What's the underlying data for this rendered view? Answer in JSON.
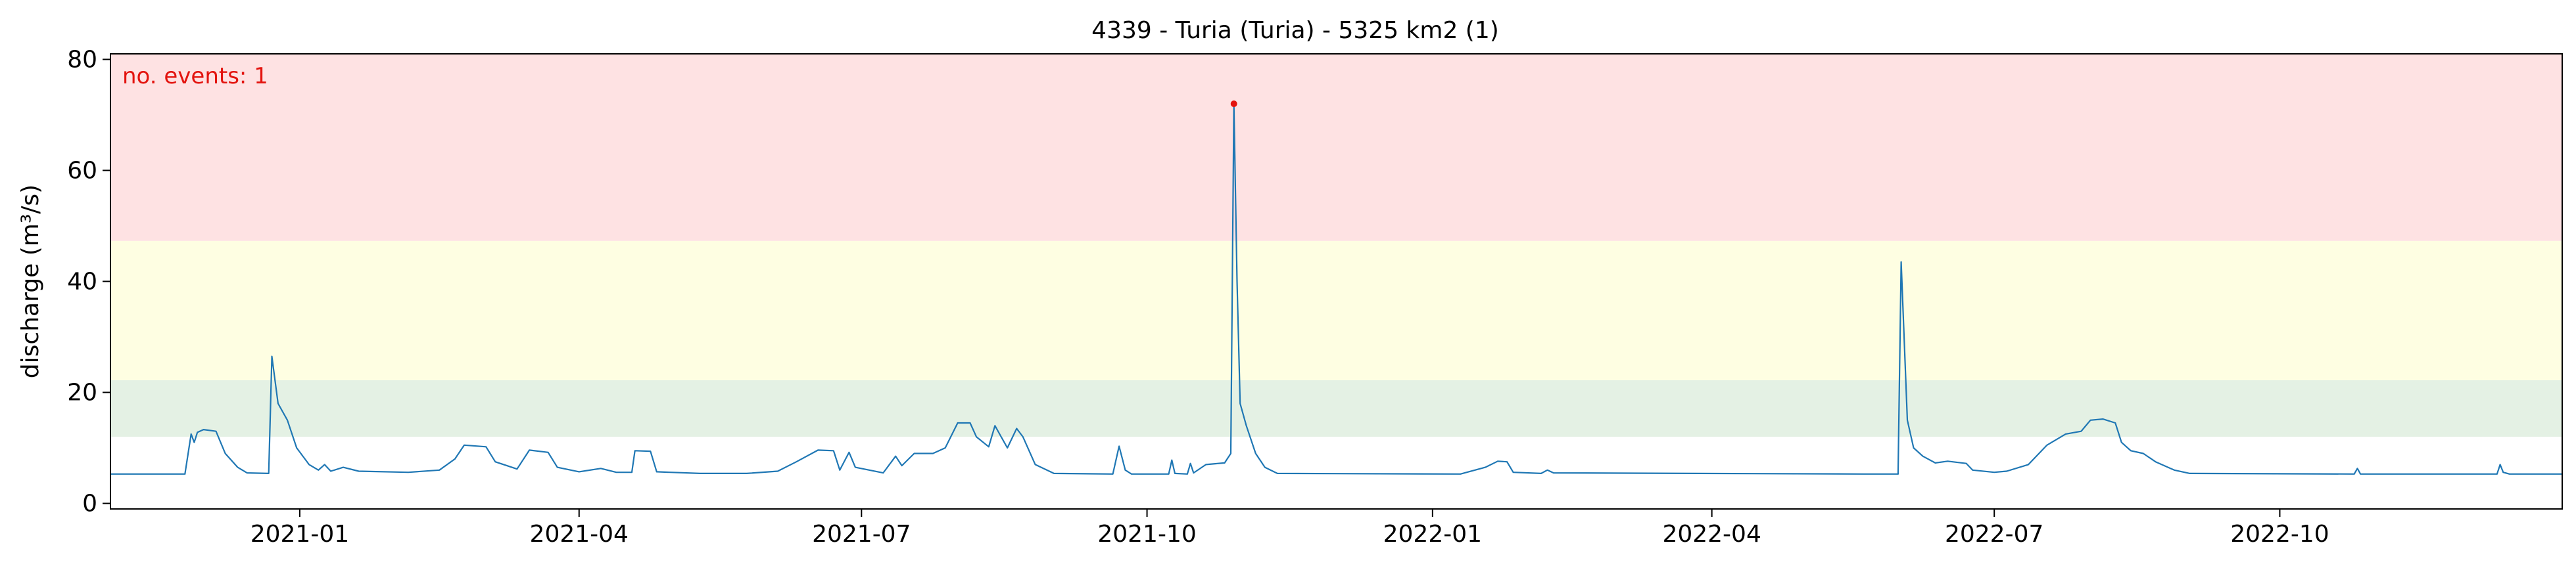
{
  "chart_data": {
    "type": "line",
    "title": "4339 - Turia (Turia) - 5325 km2 (1)",
    "xlabel": "",
    "ylabel": "discharge (m³/s)",
    "xlim": [
      "2020-11-01",
      "2022-12-31"
    ],
    "ylim": [
      -1,
      81
    ],
    "y_ticks": [
      0,
      20,
      40,
      60,
      80
    ],
    "x_ticks": [
      "2021-01-01",
      "2021-04-01",
      "2021-07-01",
      "2021-10-01",
      "2022-01-01",
      "2022-04-01",
      "2022-07-01",
      "2022-10-01"
    ],
    "x_tick_labels": [
      "2021-01",
      "2021-04",
      "2021-07",
      "2021-10",
      "2022-01",
      "2022-04",
      "2022-07",
      "2022-10"
    ],
    "grid": false,
    "threshold_bands": [
      {
        "y0": 12.0,
        "y1": 22.2,
        "color": "#e4f1e4"
      },
      {
        "y0": 22.2,
        "y1": 47.3,
        "color": "#fefee2"
      },
      {
        "y0": 47.3,
        "y1": 81,
        "color": "#fee2e3"
      }
    ],
    "series": [
      {
        "color": "#1f77b4",
        "points": [
          [
            "2020-11-01",
            5.3
          ],
          [
            "2020-11-25",
            5.3
          ],
          [
            "2020-11-27",
            12.5
          ],
          [
            "2020-11-28",
            11.0
          ],
          [
            "2020-11-29",
            12.8
          ],
          [
            "2020-12-01",
            13.3
          ],
          [
            "2020-12-05",
            13.0
          ],
          [
            "2020-12-08",
            9.0
          ],
          [
            "2020-12-12",
            6.5
          ],
          [
            "2020-12-15",
            5.5
          ],
          [
            "2020-12-22",
            5.4
          ],
          [
            "2020-12-23",
            26.5
          ],
          [
            "2020-12-25",
            18.0
          ],
          [
            "2020-12-28",
            15.0
          ],
          [
            "2020-12-31",
            10.0
          ],
          [
            "2021-01-04",
            7.0
          ],
          [
            "2021-01-07",
            6.0
          ],
          [
            "2021-01-09",
            7.0
          ],
          [
            "2021-01-11",
            5.8
          ],
          [
            "2021-01-15",
            6.5
          ],
          [
            "2021-01-20",
            5.8
          ],
          [
            "2021-02-05",
            5.6
          ],
          [
            "2021-02-15",
            6.0
          ],
          [
            "2021-02-20",
            8.0
          ],
          [
            "2021-02-23",
            10.5
          ],
          [
            "2021-03-02",
            10.2
          ],
          [
            "2021-03-05",
            7.5
          ],
          [
            "2021-03-12",
            6.2
          ],
          [
            "2021-03-16",
            9.6
          ],
          [
            "2021-03-22",
            9.2
          ],
          [
            "2021-03-25",
            6.5
          ],
          [
            "2021-04-01",
            5.7
          ],
          [
            "2021-04-08",
            6.3
          ],
          [
            "2021-04-13",
            5.6
          ],
          [
            "2021-04-18",
            5.6
          ],
          [
            "2021-04-19",
            9.5
          ],
          [
            "2021-04-24",
            9.4
          ],
          [
            "2021-04-26",
            5.7
          ],
          [
            "2021-05-10",
            5.4
          ],
          [
            "2021-05-25",
            5.4
          ],
          [
            "2021-06-04",
            5.8
          ],
          [
            "2021-06-10",
            7.5
          ],
          [
            "2021-06-17",
            9.6
          ],
          [
            "2021-06-22",
            9.5
          ],
          [
            "2021-06-24",
            6.0
          ],
          [
            "2021-06-27",
            9.2
          ],
          [
            "2021-06-29",
            6.5
          ],
          [
            "2021-07-08",
            5.5
          ],
          [
            "2021-07-12",
            8.5
          ],
          [
            "2021-07-14",
            6.8
          ],
          [
            "2021-07-18",
            9.0
          ],
          [
            "2021-07-24",
            9.0
          ],
          [
            "2021-07-28",
            10.0
          ],
          [
            "2021-08-01",
            14.5
          ],
          [
            "2021-08-05",
            14.5
          ],
          [
            "2021-08-07",
            12.0
          ],
          [
            "2021-08-11",
            10.2
          ],
          [
            "2021-08-13",
            14.0
          ],
          [
            "2021-08-15",
            12.0
          ],
          [
            "2021-08-17",
            10.0
          ],
          [
            "2021-08-20",
            13.5
          ],
          [
            "2021-08-22",
            12.0
          ],
          [
            "2021-08-26",
            7.0
          ],
          [
            "2021-09-01",
            5.4
          ],
          [
            "2021-09-20",
            5.3
          ],
          [
            "2021-09-22",
            10.3
          ],
          [
            "2021-09-24",
            6.0
          ],
          [
            "2021-09-26",
            5.3
          ],
          [
            "2021-10-08",
            5.3
          ],
          [
            "2021-10-09",
            7.8
          ],
          [
            "2021-10-10",
            5.4
          ],
          [
            "2021-10-14",
            5.3
          ],
          [
            "2021-10-15",
            7.2
          ],
          [
            "2021-10-16",
            5.5
          ],
          [
            "2021-10-20",
            7.0
          ],
          [
            "2021-10-26",
            7.3
          ],
          [
            "2021-10-28",
            9.0
          ],
          [
            "2021-10-29",
            72.0
          ],
          [
            "2021-10-30",
            40.0
          ],
          [
            "2021-10-31",
            18.0
          ],
          [
            "2021-11-02",
            14.0
          ],
          [
            "2021-11-05",
            9.0
          ],
          [
            "2021-11-08",
            6.5
          ],
          [
            "2021-11-12",
            5.4
          ],
          [
            "2022-01-10",
            5.3
          ],
          [
            "2022-01-18",
            6.5
          ],
          [
            "2022-01-22",
            7.6
          ],
          [
            "2022-01-25",
            7.5
          ],
          [
            "2022-01-27",
            5.6
          ],
          [
            "2022-02-05",
            5.4
          ],
          [
            "2022-02-07",
            6.0
          ],
          [
            "2022-02-09",
            5.5
          ],
          [
            "2022-05-20",
            5.3
          ],
          [
            "2022-05-31",
            5.3
          ],
          [
            "2022-06-01",
            43.5
          ],
          [
            "2022-06-03",
            15.0
          ],
          [
            "2022-06-05",
            10.0
          ],
          [
            "2022-06-08",
            8.5
          ],
          [
            "2022-06-12",
            7.3
          ],
          [
            "2022-06-16",
            7.6
          ],
          [
            "2022-06-22",
            7.2
          ],
          [
            "2022-06-24",
            6.0
          ],
          [
            "2022-07-01",
            5.6
          ],
          [
            "2022-07-05",
            5.8
          ],
          [
            "2022-07-12",
            7.0
          ],
          [
            "2022-07-18",
            10.5
          ],
          [
            "2022-07-24",
            12.5
          ],
          [
            "2022-07-29",
            13.0
          ],
          [
            "2022-08-01",
            15.0
          ],
          [
            "2022-08-05",
            15.2
          ],
          [
            "2022-08-09",
            14.5
          ],
          [
            "2022-08-11",
            11.0
          ],
          [
            "2022-08-14",
            9.5
          ],
          [
            "2022-08-18",
            9.0
          ],
          [
            "2022-08-22",
            7.5
          ],
          [
            "2022-08-28",
            6.0
          ],
          [
            "2022-09-02",
            5.4
          ],
          [
            "2022-10-25",
            5.3
          ],
          [
            "2022-10-26",
            6.3
          ],
          [
            "2022-10-27",
            5.3
          ],
          [
            "2022-12-10",
            5.3
          ],
          [
            "2022-12-11",
            7.0
          ],
          [
            "2022-12-12",
            5.6
          ],
          [
            "2022-12-14",
            5.3
          ],
          [
            "2022-12-31",
            5.3
          ]
        ]
      }
    ],
    "events": [
      {
        "date": "2021-10-29",
        "value": 72.0,
        "color": "#e3140f"
      }
    ],
    "annotations": [
      {
        "text": "no. events: 1",
        "position": "top-left",
        "color": "#e3140f"
      }
    ]
  }
}
